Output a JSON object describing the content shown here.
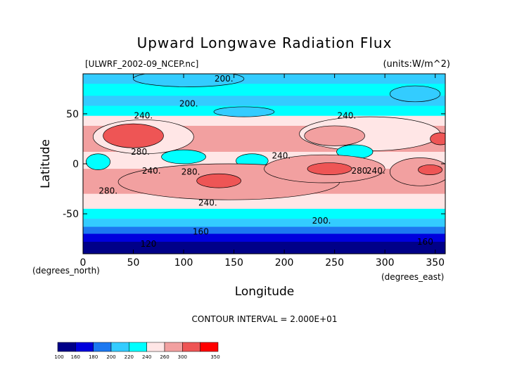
{
  "chart_data": {
    "type": "heatmap",
    "title": "Upward Longwave Radiation Flux",
    "subtitle_left": "[ULWRF_2002-09_NCEP.nc]",
    "subtitle_right": "(units:W/m^2)",
    "xlabel": "Longitude",
    "ylabel": "Latitude",
    "xunit": "(degrees_east)",
    "yunit": "(degrees_north)",
    "xlim": [
      0,
      360
    ],
    "ylim": [
      -90,
      90
    ],
    "xticks": [
      0,
      50,
      100,
      150,
      200,
      250,
      300,
      350
    ],
    "yticks": [
      -50,
      0,
      50
    ],
    "contour_interval_text": "CONTOUR INTERVAL = 2.000E+01",
    "colorbar": {
      "levels": [
        100,
        160,
        180,
        200,
        220,
        240,
        260,
        300,
        350
      ],
      "level_labels": [
        "100",
        "160",
        "180",
        "200",
        "220",
        "240",
        "260",
        "300",
        "350"
      ],
      "colors": [
        "#000088",
        "#0000dd",
        "#1c78f0",
        "#33ccff",
        "#00ffff",
        "#ffe6e6",
        "#f2a0a0",
        "#ee5555",
        "#ff0000"
      ]
    },
    "contour_labels": [
      {
        "text": "200.",
        "lon": 140,
        "lat": 85
      },
      {
        "text": "200.",
        "lon": 105,
        "lat": 60
      },
      {
        "text": "240.",
        "lon": 60,
        "lat": 48
      },
      {
        "text": "240.",
        "lon": 262,
        "lat": 48
      },
      {
        "text": "280.",
        "lon": 57,
        "lat": 12
      },
      {
        "text": "240.",
        "lon": 197,
        "lat": 8
      },
      {
        "text": "240.",
        "lon": 68,
        "lat": -7
      },
      {
        "text": "280.",
        "lon": 107,
        "lat": -8
      },
      {
        "text": "280.",
        "lon": 276,
        "lat": -7
      },
      {
        "text": "240.",
        "lon": 291,
        "lat": -7
      },
      {
        "text": "280.",
        "lon": 25,
        "lat": -27
      },
      {
        "text": "240.",
        "lon": 124,
        "lat": -39
      },
      {
        "text": "200.",
        "lon": 237,
        "lat": -57
      },
      {
        "text": "160",
        "lon": 117,
        "lat": -68
      },
      {
        "text": "120",
        "lon": 65,
        "lat": -80
      },
      {
        "text": "160",
        "lon": 340,
        "lat": -78
      }
    ],
    "regions": [
      {
        "level": 200,
        "lon": 105,
        "lat": 85,
        "dlon": 55,
        "dlat": 8
      },
      {
        "level": 200,
        "lon": 330,
        "lat": 70,
        "dlon": 25,
        "dlat": 8
      },
      {
        "level": 200,
        "lon": 160,
        "lat": 52,
        "dlon": 30,
        "dlat": 5
      },
      {
        "level": 240,
        "lon": 60,
        "lat": 27,
        "dlon": 50,
        "dlat": 17
      },
      {
        "level": 240,
        "lon": 285,
        "lat": 30,
        "dlon": 70,
        "dlat": 17
      },
      {
        "level": 300,
        "lon": 50,
        "lat": 28,
        "dlon": 30,
        "dlat": 12
      },
      {
        "level": 300,
        "lon": 355,
        "lat": 25,
        "dlon": 10,
        "dlat": 6
      },
      {
        "level": 260,
        "lon": 250,
        "lat": 28,
        "dlon": 30,
        "dlat": 10
      },
      {
        "level": 220,
        "lon": 100,
        "lat": 7,
        "dlon": 22,
        "dlat": 7
      },
      {
        "level": 220,
        "lon": 168,
        "lat": 3,
        "dlon": 16,
        "dlat": 7
      },
      {
        "level": 220,
        "lon": 270,
        "lat": 12,
        "dlon": 18,
        "dlat": 7
      },
      {
        "level": 220,
        "lon": 15,
        "lat": 2,
        "dlon": 12,
        "dlat": 8
      },
      {
        "level": 260,
        "lon": 145,
        "lat": -18,
        "dlon": 110,
        "dlat": 18
      },
      {
        "level": 260,
        "lon": 240,
        "lat": -5,
        "dlon": 60,
        "dlat": 14
      },
      {
        "level": 260,
        "lon": 335,
        "lat": -8,
        "dlon": 30,
        "dlat": 14
      },
      {
        "level": 300,
        "lon": 135,
        "lat": -17,
        "dlon": 22,
        "dlat": 7
      },
      {
        "level": 300,
        "lon": 245,
        "lat": -5,
        "dlon": 22,
        "dlat": 6
      },
      {
        "level": 300,
        "lon": 345,
        "lat": -6,
        "dlon": 12,
        "dlat": 5
      }
    ]
  }
}
